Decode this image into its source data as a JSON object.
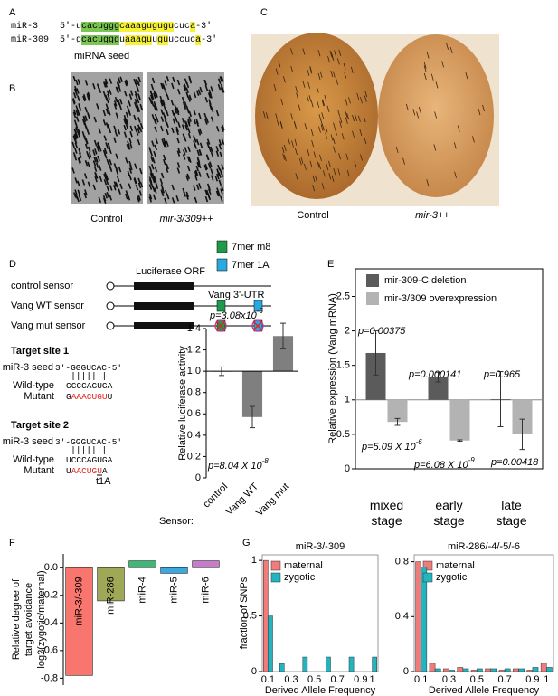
{
  "panels": {
    "labels": [
      "A",
      "B",
      "C",
      "D",
      "E",
      "F",
      "G"
    ]
  },
  "panel_a": {
    "rows": [
      {
        "name": "miR-3",
        "segments": [
          {
            "text": "5'-u"
          },
          {
            "text": "cacuggg",
            "highlight": "#7cc653"
          },
          {
            "text": "caaagugugu",
            "highlight": "#f6f23a"
          },
          {
            "text": "cuc"
          },
          {
            "text": "a",
            "highlight": "#f6f23a"
          },
          {
            "text": "-3'"
          }
        ]
      },
      {
        "name": "miR-309",
        "segments": [
          {
            "text": "5'-g"
          },
          {
            "text": "cacuggg",
            "highlight": "#7cc653"
          },
          {
            "text": "u"
          },
          {
            "text": "aaagu",
            "highlight": "#f6f23a"
          },
          {
            "text": "u"
          },
          {
            "text": "gu",
            "highlight": "#f6f23a"
          },
          {
            "text": "uccuc"
          },
          {
            "text": "a",
            "highlight": "#f6f23a"
          },
          {
            "text": "-3'"
          }
        ]
      }
    ],
    "seed_label": "miRNA seed"
  },
  "panel_b": {
    "labels": [
      "Control",
      "mir-3/309++"
    ]
  },
  "panel_c": {
    "labels": [
      "Control",
      "mir-3++"
    ]
  },
  "panel_d": {
    "constructs": [
      "control sensor",
      "Vang WT sensor",
      "Vang mut sensor"
    ],
    "orf": "Luciferase ORF",
    "utr": "Vang 3'-UTR",
    "site_legend": [
      {
        "name": "7mer m8",
        "color": "#1f9a4b"
      },
      {
        "name": "7mer 1A",
        "color": "#29a9df"
      }
    ],
    "target_sites": [
      {
        "title": "Target site 1",
        "rows": [
          {
            "label": "miR-3 seed",
            "segments": [
              {
                "text": "3'-GGGUCAC-5'"
              }
            ]
          },
          {
            "label": "Wild-type",
            "segments": [
              {
                "text": "GCCCAGUGA"
              }
            ]
          },
          {
            "label": "Mutant",
            "segments": [
              {
                "text": "G"
              },
              {
                "text": "AAACUGU",
                "color": "#e2231a"
              },
              {
                "text": "U"
              }
            ]
          }
        ]
      },
      {
        "title": "Target site 2",
        "rows": [
          {
            "label": "miR-3 seed",
            "segments": [
              {
                "text": "3'-GGGUCAC-5'"
              }
            ]
          },
          {
            "label": "Wild-type",
            "segments": [
              {
                "text": "UCCCAGUGA"
              }
            ]
          },
          {
            "label": "Mutant",
            "segments": [
              {
                "text": "U"
              },
              {
                "text": "AACUGU",
                "color": "#e2231a"
              },
              {
                "text": "A"
              }
            ]
          }
        ],
        "note": "t1A"
      }
    ]
  },
  "chart_data": [
    {
      "type": "bar",
      "categories": [
        "control",
        "Vang WT",
        "Vang mut"
      ],
      "values": [
        1.0,
        0.57,
        1.33
      ],
      "errors": [
        0.04,
        0.1,
        0.12
      ],
      "color": "#7f7f7f",
      "bar_base": 1,
      "ylim": [
        0,
        1.4
      ],
      "yticks": [
        0,
        0.2,
        0.4,
        0.6,
        0.8,
        {
          "value": 1,
          "label": "1.0"
        },
        1.2,
        1.4
      ],
      "y_label": "Relative luciferase activity",
      "x_label": "Sensor:",
      "annotations": [
        {
          "text": "p=3.08x10",
          "sup": "-6"
        },
        {
          "text": "p=8.04 X 10",
          "sup": "-8"
        }
      ]
    },
    {
      "type": "grouped_bar",
      "categories": [
        "mixed stage",
        "early stage",
        "late stage"
      ],
      "series": [
        {
          "name": "mir-309-C deletion",
          "color": "#5b5b5b",
          "values": [
            1.68,
            1.33,
            1.01
          ],
          "errors": [
            0.32,
            0.07,
            0.4
          ]
        },
        {
          "name": "mir-3/309 overexpression",
          "color": "#b3b3b3",
          "values": [
            0.68,
            0.41,
            0.5
          ],
          "errors": [
            0.05,
            0.01,
            0.22
          ]
        }
      ],
      "bar_base": 1,
      "ylim": [
        0,
        2.9
      ],
      "yticks": [
        0,
        0.5,
        1,
        1.5,
        2,
        2.5
      ],
      "y_label": "Relative expression (Vang mRNA)",
      "annotations": [
        {
          "text": "p=0.00375"
        },
        {
          "text": "p=0.000141"
        },
        {
          "text": "p=0.965"
        },
        {
          "text": "p=5.09 X 10",
          "sup": "-6"
        },
        {
          "text": "p=6.08 X 10",
          "sup": "-9"
        },
        {
          "text": "p=0.00418"
        }
      ]
    },
    {
      "type": "bar",
      "categories": [
        "miR-3/-309",
        "miR-286",
        "miR-4",
        "miR-5",
        "miR-6"
      ],
      "values": [
        -0.78,
        -0.24,
        0.05,
        -0.04,
        0.05
      ],
      "colors": [
        "#f8766d",
        "#9fa857",
        "#3cb878",
        "#3aa9de",
        "#c77cc9"
      ],
      "ylim": [
        -0.85,
        0.1
      ],
      "yticks": [
        {
          "value": 0,
          "label": "0.0"
        },
        -0.2,
        -0.4,
        -0.6,
        -0.8
      ],
      "y_label": [
        "Relative degree of",
        "target avoidance",
        "log2(zygotic/maternal)"
      ]
    },
    {
      "type": "histogram",
      "title": "miR-3/-309",
      "categories": [
        "0.1",
        null,
        "0.3",
        null,
        "0.5",
        null,
        "0.7",
        null,
        "0.9",
        "1"
      ],
      "series": [
        {
          "name": "maternal",
          "color": "#ef7b7b",
          "values": [
            1.0,
            0,
            0,
            0,
            0,
            0,
            0,
            0,
            0,
            0
          ]
        },
        {
          "name": "zygotic",
          "color": "#22b5bf",
          "values": [
            0.5,
            0.07,
            0,
            0.13,
            0,
            0.13,
            0,
            0.13,
            0,
            0.13
          ]
        }
      ],
      "ylim": [
        0,
        1.05
      ],
      "yticks": [
        0,
        0.5,
        1
      ],
      "y_label": "fraction of SNPs",
      "x_label": "Derived Allele Frequency"
    },
    {
      "type": "histogram",
      "title": "miR-286/-4/-5/-6",
      "categories": [
        "0.1",
        null,
        "0.3",
        null,
        "0.5",
        null,
        "0.7",
        null,
        "0.9",
        "1"
      ],
      "series": [
        {
          "name": "maternal",
          "color": "#ef7b7b",
          "values": [
            0.8,
            0.06,
            0.02,
            0.03,
            0.01,
            0.02,
            0.01,
            0.02,
            0.01,
            0.06
          ]
        },
        {
          "name": "zygotic",
          "color": "#22b5bf",
          "values": [
            0.76,
            0.02,
            0.01,
            0.02,
            0.02,
            0.02,
            0.02,
            0.02,
            0.03,
            0.03
          ]
        }
      ],
      "ylim": [
        0,
        0.85
      ],
      "yticks": [
        0,
        0.4,
        0.8
      ],
      "x_label": "Derived Allele Frequency"
    }
  ]
}
